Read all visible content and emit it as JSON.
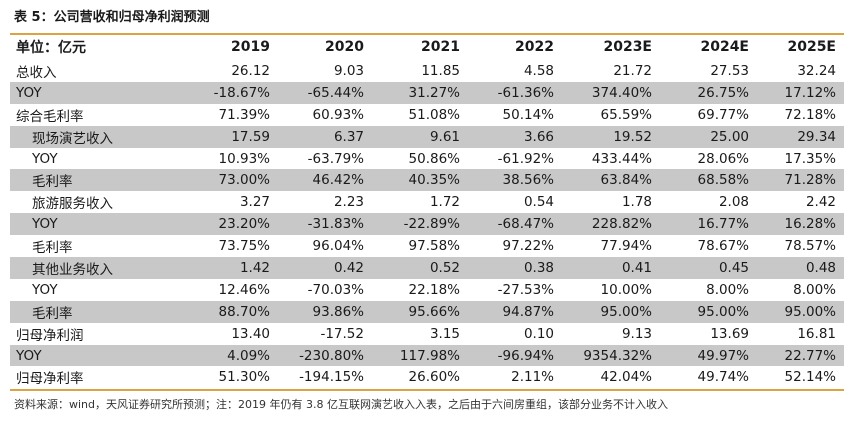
{
  "title": "表 5：公司营收和归母净利润预测",
  "header": {
    "label": "单位：亿元",
    "columns": [
      "2019",
      "2020",
      "2021",
      "2022",
      "2023E",
      "2024E",
      "2025E"
    ]
  },
  "rows": [
    {
      "label": "总收入",
      "indent": 0,
      "shaded": false,
      "values": [
        "26.12",
        "9.03",
        "11.85",
        "4.58",
        "21.72",
        "27.53",
        "32.24"
      ]
    },
    {
      "label": "YOY",
      "indent": 0,
      "shaded": true,
      "values": [
        "-18.67%",
        "-65.44%",
        "31.27%",
        "-61.36%",
        "374.40%",
        "26.75%",
        "17.12%"
      ]
    },
    {
      "label": "综合毛利率",
      "indent": 0,
      "shaded": false,
      "values": [
        "71.39%",
        "60.93%",
        "51.08%",
        "50.14%",
        "65.59%",
        "69.77%",
        "72.18%"
      ]
    },
    {
      "label": "现场演艺收入",
      "indent": 1,
      "shaded": true,
      "values": [
        "17.59",
        "6.37",
        "9.61",
        "3.66",
        "19.52",
        "25.00",
        "29.34"
      ]
    },
    {
      "label": "YOY",
      "indent": 1,
      "shaded": false,
      "values": [
        "10.93%",
        "-63.79%",
        "50.86%",
        "-61.92%",
        "433.44%",
        "28.06%",
        "17.35%"
      ]
    },
    {
      "label": "毛利率",
      "indent": 1,
      "shaded": true,
      "values": [
        "73.00%",
        "46.42%",
        "40.35%",
        "38.56%",
        "63.84%",
        "68.58%",
        "71.28%"
      ]
    },
    {
      "label": "旅游服务收入",
      "indent": 1,
      "shaded": false,
      "values": [
        "3.27",
        "2.23",
        "1.72",
        "0.54",
        "1.78",
        "2.08",
        "2.42"
      ]
    },
    {
      "label": "YOY",
      "indent": 1,
      "shaded": true,
      "values": [
        "23.20%",
        "-31.83%",
        "-22.89%",
        "-68.47%",
        "228.82%",
        "16.77%",
        "16.28%"
      ]
    },
    {
      "label": "毛利率",
      "indent": 1,
      "shaded": false,
      "values": [
        "73.75%",
        "96.04%",
        "97.58%",
        "97.22%",
        "77.94%",
        "78.67%",
        "78.57%"
      ]
    },
    {
      "label": "其他业务收入",
      "indent": 1,
      "shaded": true,
      "values": [
        "1.42",
        "0.42",
        "0.52",
        "0.38",
        "0.41",
        "0.45",
        "0.48"
      ]
    },
    {
      "label": "YOY",
      "indent": 1,
      "shaded": false,
      "values": [
        "12.46%",
        "-70.03%",
        "22.18%",
        "-27.53%",
        "10.00%",
        "8.00%",
        "8.00%"
      ]
    },
    {
      "label": "毛利率",
      "indent": 1,
      "shaded": true,
      "values": [
        "88.70%",
        "93.86%",
        "95.66%",
        "94.87%",
        "95.00%",
        "95.00%",
        "95.00%"
      ]
    },
    {
      "label": "归母净利润",
      "indent": 0,
      "shaded": false,
      "values": [
        "13.40",
        "-17.52",
        "3.15",
        "0.10",
        "9.13",
        "13.69",
        "16.81"
      ]
    },
    {
      "label": "YOY",
      "indent": 0,
      "shaded": true,
      "values": [
        "4.09%",
        "-230.80%",
        "117.98%",
        "-96.94%",
        "9354.32%",
        "49.97%",
        "22.77%"
      ]
    },
    {
      "label": "归母净利率",
      "indent": 0,
      "shaded": false,
      "values": [
        "51.30%",
        "-194.15%",
        "26.60%",
        "2.11%",
        "42.04%",
        "49.74%",
        "52.14%"
      ]
    }
  ],
  "footer": "资料来源：wind，天风证券研究所预测；注：2019 年仍有 3.8 亿互联网演艺收入入表，之后由于六间房重组，该部分业务不计入收入",
  "colors": {
    "rule": "#d9a441",
    "shade": "#c8c8c8"
  }
}
